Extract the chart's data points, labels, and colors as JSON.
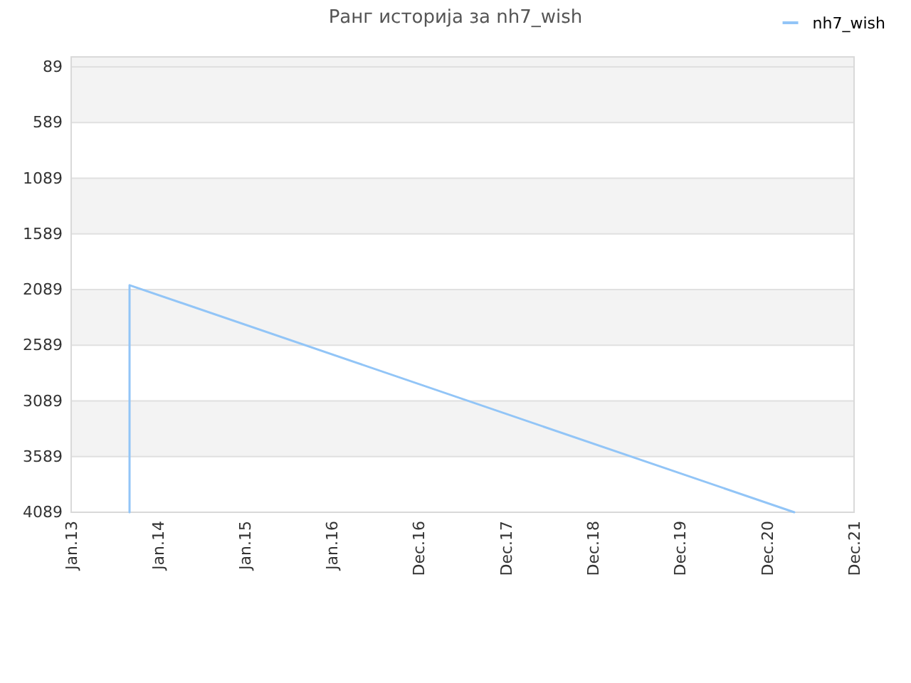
{
  "chart_data": {
    "type": "line",
    "title": "Ранг историја за nh7_wish",
    "x": [
      "2013-09-03",
      "2013-09-03",
      "2021-04-24"
    ],
    "series": [
      {
        "name": "nh7_wish",
        "color": "#92c5f7",
        "values": [
          4089,
          2050,
          4089
        ]
      }
    ],
    "xlim": [
      "2013-01-01",
      "2021-12-31"
    ],
    "xticks": [
      {
        "value": "2013-01-01",
        "label": "Jan.13"
      },
      {
        "value": "2014-01-01",
        "label": "Jan.14"
      },
      {
        "value": "2015-01-01",
        "label": "Jan.15"
      },
      {
        "value": "2016-01-01",
        "label": "Jan.16"
      },
      {
        "value": "2016-12-31",
        "label": "Dec.16"
      },
      {
        "value": "2017-12-31",
        "label": "Dec.17"
      },
      {
        "value": "2018-12-31",
        "label": "Dec.18"
      },
      {
        "value": "2019-12-31",
        "label": "Dec.19"
      },
      {
        "value": "2020-12-31",
        "label": "Dec.20"
      },
      {
        "value": "2021-12-31",
        "label": "Dec.21"
      }
    ],
    "ylim": [
      4089,
      0
    ],
    "yticks": [
      89,
      589,
      1089,
      1589,
      2089,
      2589,
      3089,
      3589,
      4089
    ],
    "grid": "y",
    "legend": "top right",
    "line_style": "solid"
  }
}
